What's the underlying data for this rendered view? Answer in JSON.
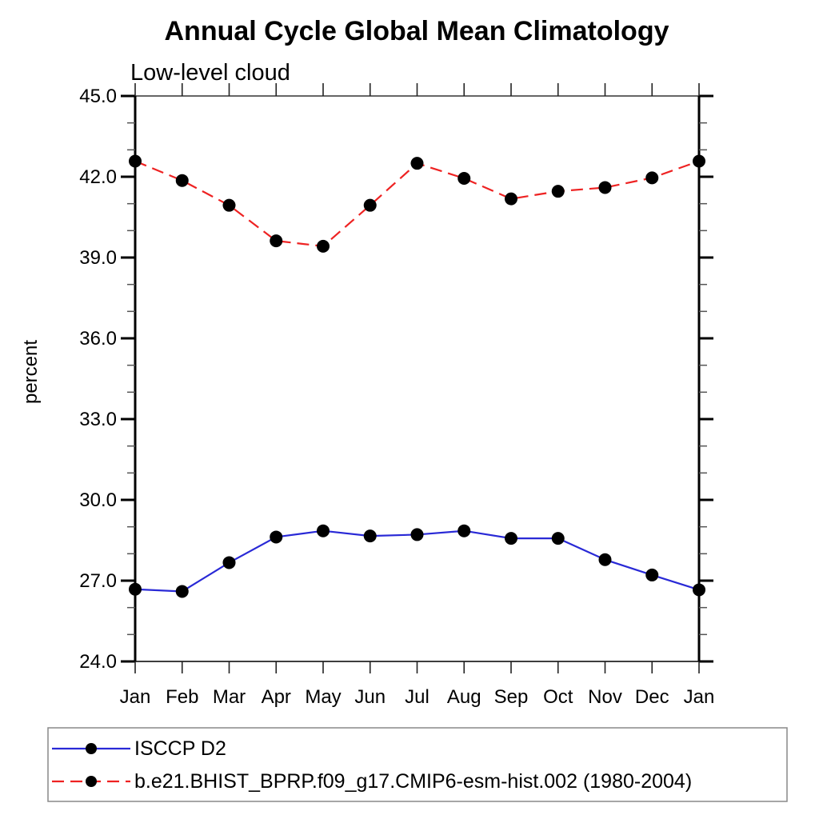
{
  "chart_data": {
    "type": "line",
    "title": "Annual Cycle Global Mean Climatology",
    "subtitle": "Low-level cloud",
    "ylabel": "percent",
    "categories": [
      "Jan",
      "Feb",
      "Mar",
      "Apr",
      "May",
      "Jun",
      "Jul",
      "Aug",
      "Sep",
      "Oct",
      "Nov",
      "Dec",
      "Jan"
    ],
    "ylim": [
      24.0,
      45.0
    ],
    "ytick_major_step": 3.0,
    "ytick_minor_step": 1.0,
    "ytick_label_format": "one_decimal",
    "grid": "off",
    "legend_position": "bottom-left-box",
    "marker_color": "#000000",
    "series": [
      {
        "name": "ISCCP D2",
        "color": "#2929d6",
        "line_style": "solid",
        "marker": "circle",
        "values": [
          26.68,
          26.6,
          27.67,
          28.62,
          28.85,
          28.66,
          28.71,
          28.85,
          28.57,
          28.57,
          27.78,
          27.21,
          26.66
        ]
      },
      {
        "name": "b.e21.BHIST_BPRP.f09_g17.CMIP6-esm-hist.002 (1980-2004)",
        "color": "#ee2222",
        "line_style": "dashed",
        "marker": "circle",
        "values": [
          42.58,
          41.86,
          40.94,
          39.62,
          39.42,
          40.94,
          42.5,
          41.94,
          41.18,
          41.46,
          41.6,
          41.96,
          42.58
        ]
      }
    ]
  }
}
